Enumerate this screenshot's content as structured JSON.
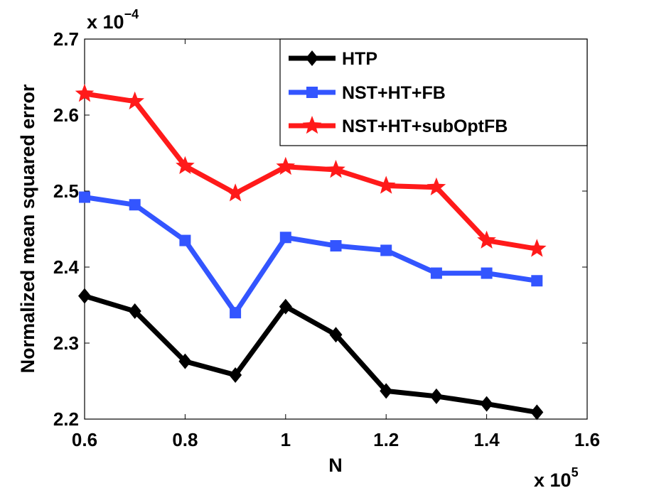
{
  "chart_data": {
    "type": "line",
    "title": "",
    "xlabel": "N",
    "ylabel": "Normalized mean squared error",
    "x_multiplier_label": {
      "base": "x 10",
      "exponent": "5"
    },
    "y_multiplier_label": {
      "base": "x 10",
      "exponent": "−4"
    },
    "xlim": [
      0.6,
      1.6
    ],
    "ylim": [
      2.2,
      2.7
    ],
    "xticks": [
      0.6,
      0.8,
      1.0,
      1.2,
      1.4,
      1.6
    ],
    "xtick_labels": [
      "0.6",
      "0.8",
      "1",
      "1.2",
      "1.4",
      "1.6"
    ],
    "yticks": [
      2.2,
      2.3,
      2.4,
      2.5,
      2.6,
      2.7
    ],
    "ytick_labels": [
      "2.2",
      "2.3",
      "2.4",
      "2.5",
      "2.6",
      "2.7"
    ],
    "grid": false,
    "legend_position": "top-right",
    "x": [
      0.6,
      0.7,
      0.8,
      0.9,
      1.0,
      1.1,
      1.2,
      1.3,
      1.4,
      1.5
    ],
    "series": [
      {
        "name": "HTP",
        "color": "#000000",
        "marker": "diamond",
        "values": [
          2.362,
          2.342,
          2.276,
          2.258,
          2.348,
          2.311,
          2.237,
          2.23,
          2.22,
          2.209
        ]
      },
      {
        "name": "NST+HT+FB",
        "color": "#3355ff",
        "marker": "square",
        "values": [
          2.492,
          2.482,
          2.435,
          2.34,
          2.439,
          2.428,
          2.422,
          2.392,
          2.392,
          2.382
        ]
      },
      {
        "name": "NST+HT+subOptFB",
        "color": "#ff1a1a",
        "marker": "star",
        "values": [
          2.628,
          2.618,
          2.533,
          2.497,
          2.532,
          2.528,
          2.507,
          2.505,
          2.435,
          2.424
        ]
      }
    ]
  }
}
